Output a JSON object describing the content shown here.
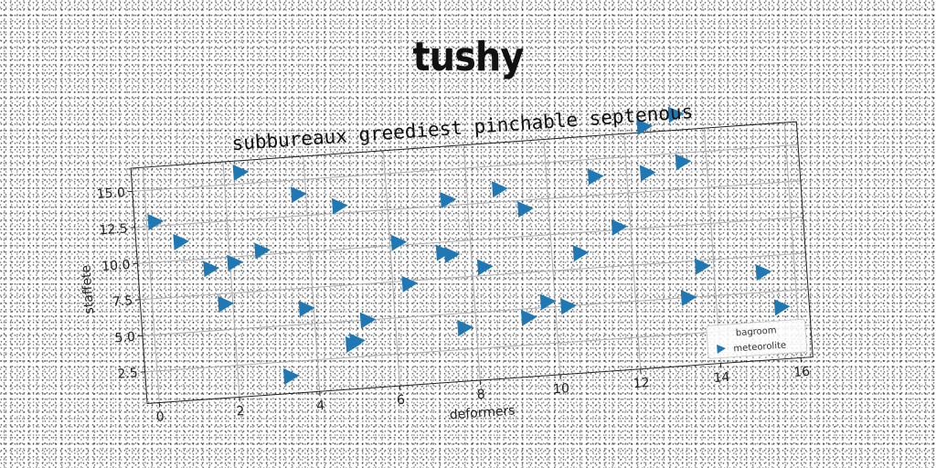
{
  "page_title": "tushy",
  "chart_data": {
    "type": "scatter",
    "title": "subbureaux greediest pinchable septenous",
    "xlabel": "deformers",
    "ylabel": "staffete",
    "xlim": [
      -0.3,
      16.3
    ],
    "ylim": [
      0.3,
      16.6
    ],
    "xticks": [
      0,
      2,
      4,
      6,
      8,
      10,
      12,
      14,
      16
    ],
    "yticks": [
      2.5,
      5.0,
      7.5,
      10.0,
      12.5,
      15.0
    ],
    "xtick_labels": [
      "0",
      "2",
      "4",
      "6",
      "8",
      "10",
      "12",
      "14",
      "16"
    ],
    "ytick_labels": [
      "2.5",
      "5.0",
      "7.5",
      "10.0",
      "12.5",
      "15.0"
    ],
    "grid": true,
    "marker": "triangle-right",
    "color": "#1f77b4",
    "legend": {
      "title": "bagroom",
      "placement": "lower-right",
      "entries": [
        "meteorolite"
      ]
    },
    "series": [
      {
        "name": "meteorolite",
        "points": [
          [
            0.2,
            12.8
          ],
          [
            0.8,
            11.3
          ],
          [
            1.5,
            9.3
          ],
          [
            2.1,
            9.6
          ],
          [
            2.8,
            10.3
          ],
          [
            1.8,
            6.8
          ],
          [
            2.4,
            15.8
          ],
          [
            3.8,
            14.0
          ],
          [
            4.8,
            13.0
          ],
          [
            6.2,
            10.2
          ],
          [
            3.8,
            6.1
          ],
          [
            5.3,
            5.0
          ],
          [
            5.0,
            3.6
          ],
          [
            4.9,
            3.4
          ],
          [
            3.3,
            1.5
          ],
          [
            6.4,
            7.3
          ],
          [
            7.3,
            9.3
          ],
          [
            7.5,
            9.1
          ],
          [
            7.5,
            12.9
          ],
          [
            8.8,
            13.4
          ],
          [
            8.3,
            8.1
          ],
          [
            9.4,
            11.9
          ],
          [
            9.8,
            5.4
          ],
          [
            10.3,
            5.0
          ],
          [
            9.3,
            4.4
          ],
          [
            7.7,
            4.0
          ],
          [
            10.7,
            8.6
          ],
          [
            11.2,
            13.8
          ],
          [
            11.7,
            10.2
          ],
          [
            12.5,
            13.8
          ],
          [
            12.5,
            17.0
          ],
          [
            13.3,
            17.7
          ],
          [
            13.4,
            14.4
          ],
          [
            13.3,
            5.0
          ],
          [
            13.7,
            7.1
          ],
          [
            15.2,
            6.4
          ],
          [
            15.6,
            3.9
          ]
        ]
      }
    ]
  }
}
